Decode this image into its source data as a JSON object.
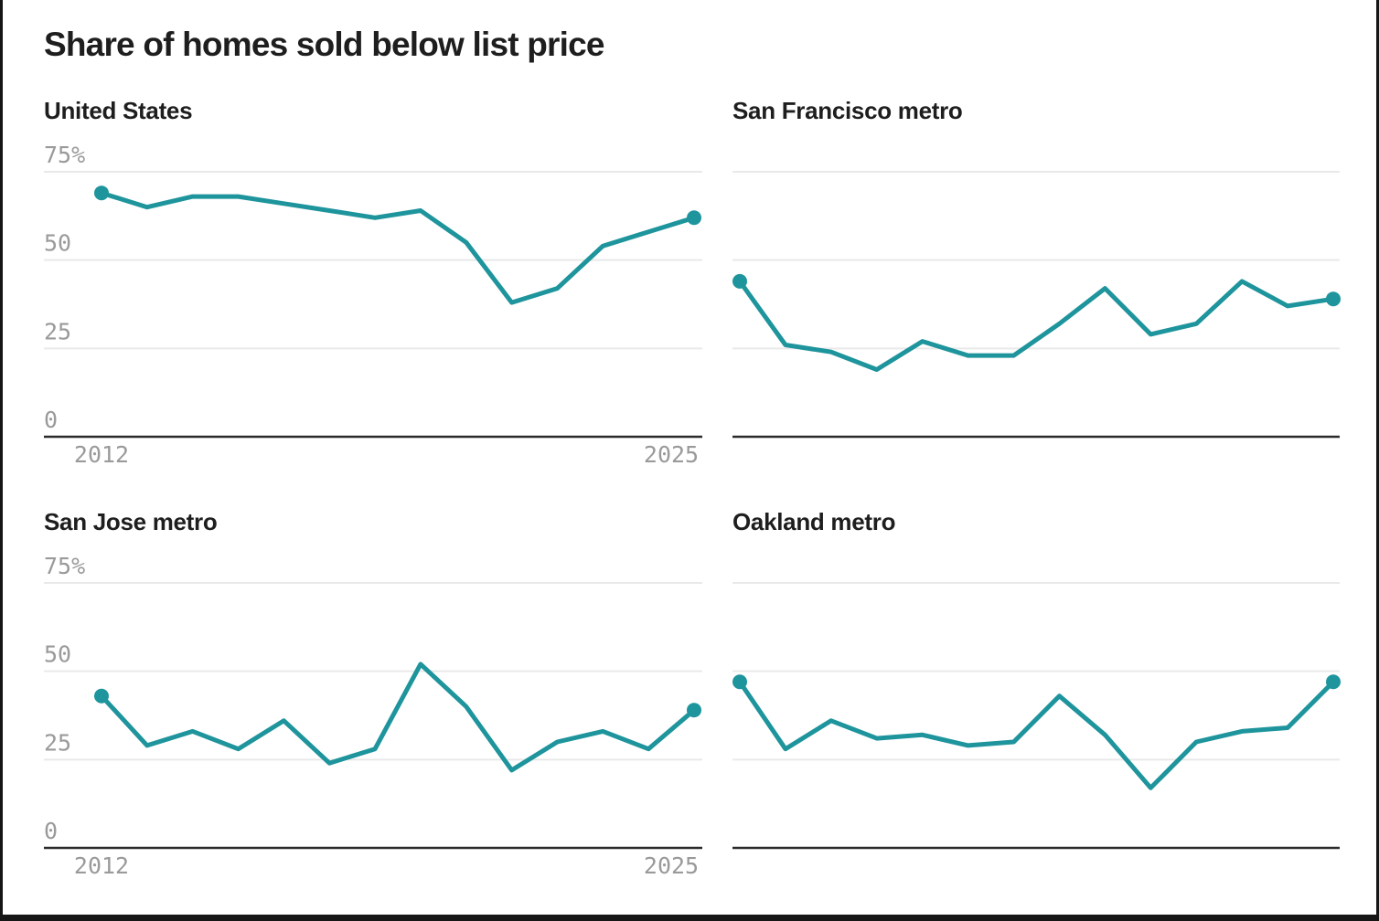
{
  "page": {
    "title": "Share of homes sold below list price"
  },
  "colors": {
    "line": "#1e949c",
    "grid": "#e9e9e9",
    "axis": "#2b2b2b",
    "tick_label": "#9a9a9a",
    "title": "#1e1e1e"
  },
  "axis": {
    "years": [
      2012,
      2013,
      2014,
      2015,
      2016,
      2017,
      2018,
      2019,
      2020,
      2021,
      2022,
      2023,
      2024,
      2025
    ],
    "y_tick_values": [
      75,
      50,
      25,
      0
    ],
    "y_tick_labels": [
      "75%",
      "50",
      "25",
      "0"
    ],
    "x_tick_labels": [
      "2012",
      "2025"
    ],
    "ylim": [
      0,
      75
    ],
    "grid": true,
    "legend": "none"
  },
  "chart_data": [
    {
      "type": "line",
      "title": "United States",
      "show_y_labels": true,
      "show_x_labels": true,
      "x": [
        2012,
        2013,
        2014,
        2015,
        2016,
        2017,
        2018,
        2019,
        2020,
        2021,
        2022,
        2023,
        2024,
        2025
      ],
      "values": [
        69,
        65,
        68,
        68,
        66,
        64,
        62,
        64,
        55,
        38,
        42,
        54,
        58,
        62
      ],
      "ylim": [
        0,
        75
      ]
    },
    {
      "type": "line",
      "title": "San Francisco metro",
      "show_y_labels": false,
      "show_x_labels": false,
      "x": [
        2012,
        2013,
        2014,
        2015,
        2016,
        2017,
        2018,
        2019,
        2020,
        2021,
        2022,
        2023,
        2024,
        2025
      ],
      "values": [
        44,
        26,
        24,
        19,
        27,
        23,
        23,
        32,
        42,
        29,
        32,
        44,
        37,
        39
      ],
      "ylim": [
        0,
        75
      ]
    },
    {
      "type": "line",
      "title": "San Jose metro",
      "show_y_labels": true,
      "show_x_labels": true,
      "x": [
        2012,
        2013,
        2014,
        2015,
        2016,
        2017,
        2018,
        2019,
        2020,
        2021,
        2022,
        2023,
        2024,
        2025
      ],
      "values": [
        43,
        29,
        33,
        28,
        36,
        24,
        28,
        52,
        40,
        22,
        30,
        33,
        28,
        39
      ],
      "ylim": [
        0,
        75
      ]
    },
    {
      "type": "line",
      "title": "Oakland metro",
      "show_y_labels": false,
      "show_x_labels": false,
      "x": [
        2012,
        2013,
        2014,
        2015,
        2016,
        2017,
        2018,
        2019,
        2020,
        2021,
        2022,
        2023,
        2024,
        2025
      ],
      "values": [
        47,
        28,
        36,
        31,
        32,
        29,
        30,
        43,
        32,
        17,
        30,
        33,
        34,
        47
      ],
      "ylim": [
        0,
        75
      ]
    }
  ]
}
